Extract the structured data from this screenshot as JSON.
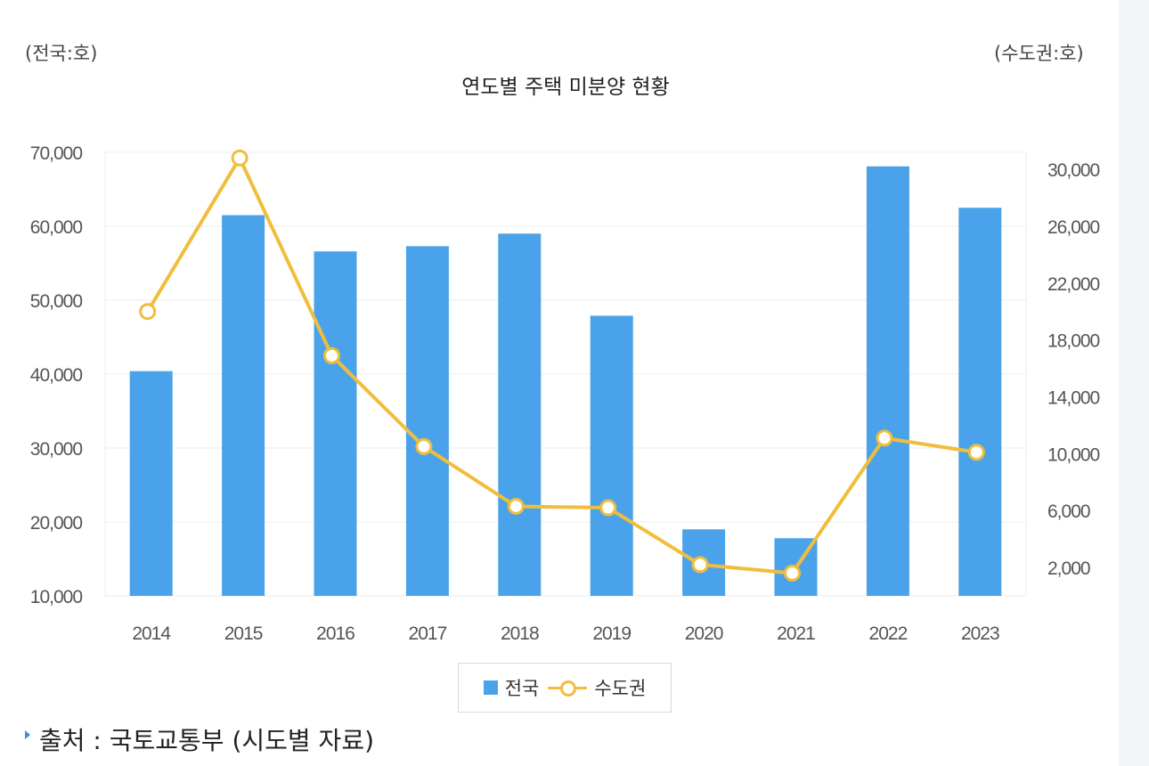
{
  "header": {
    "left_unit": "(전국:호)",
    "right_unit": "(수도권:호)",
    "title": "연도별 주택 미분양 현황"
  },
  "colors": {
    "bar": "#4aa3ea",
    "line": "#f0be3c",
    "grid": "#ececec",
    "tick_text": "#555555"
  },
  "chart_data": {
    "type": "bar",
    "title": "연도별 주택 미분양 현황",
    "categories": [
      "2014",
      "2015",
      "2016",
      "2017",
      "2018",
      "2019",
      "2020",
      "2021",
      "2022",
      "2023"
    ],
    "series": [
      {
        "name": "전국",
        "type": "bar",
        "axis": "left",
        "values": [
          40400,
          61500,
          56600,
          57300,
          59000,
          47900,
          19000,
          17800,
          68100,
          62500
        ]
      },
      {
        "name": "수도권",
        "type": "line",
        "axis": "right",
        "values": [
          20000,
          30800,
          16900,
          10500,
          6300,
          6200,
          2200,
          1600,
          11100,
          10100
        ]
      }
    ],
    "y_left": {
      "ylim": [
        10000,
        70000
      ],
      "ticks": [
        "10,000",
        "20,000",
        "30,000",
        "40,000",
        "50,000",
        "60,000",
        "70,000"
      ],
      "unit": "(전국:호)"
    },
    "y_right": {
      "ylim": [
        0,
        31200
      ],
      "ticks": [
        "2,000",
        "6,000",
        "10,000",
        "14,000",
        "18,000",
        "22,000",
        "26,000",
        "30,000"
      ],
      "unit": "(수도권:호)"
    },
    "grid": true,
    "legend_position": "bottom"
  },
  "legend": {
    "items": [
      {
        "label": "전국"
      },
      {
        "label": "수도권"
      }
    ]
  },
  "source": {
    "text": "출처 : 국토교통부 (시도별 자료)"
  }
}
